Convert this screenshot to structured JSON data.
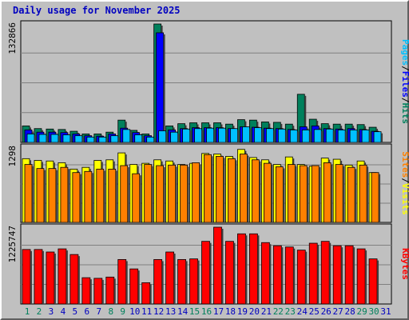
{
  "title": "Daily usage for November 2025",
  "colors": {
    "hits": "#00805c",
    "files": "#0000ff",
    "pages": "#00c0ff",
    "visits": "#ffff00",
    "sites": "#ff8000",
    "kbytes": "#ff0000",
    "weekend_label": "#00805c",
    "weekday_label": "#0000c0"
  },
  "chart_data": [
    {
      "type": "bar",
      "name": "hits-files-pages",
      "ymax_label": "132866",
      "ylim": [
        0,
        132866
      ],
      "categories": [
        "1",
        "2",
        "3",
        "4",
        "5",
        "6",
        "7",
        "8",
        "9",
        "10",
        "11",
        "12",
        "13",
        "14",
        "15",
        "16",
        "17",
        "18",
        "19",
        "20",
        "21",
        "22",
        "23",
        "24",
        "25",
        "26",
        "27",
        "28",
        "29",
        "30",
        "31"
      ],
      "series": [
        {
          "name": "Hits",
          "values": [
            18500,
            15500,
            15000,
            14500,
            12500,
            9500,
            9500,
            11500,
            25000,
            13500,
            9500,
            132866,
            18500,
            21000,
            22000,
            22000,
            22000,
            20500,
            25500,
            25000,
            23000,
            22500,
            20500,
            54000,
            26000,
            21000,
            20500,
            20500,
            20000,
            17000,
            0
          ]
        },
        {
          "name": "Files",
          "values": [
            14000,
            11500,
            11500,
            11000,
            9500,
            7500,
            7000,
            9500,
            16000,
            11000,
            7500,
            123000,
            14000,
            15500,
            16500,
            16500,
            16500,
            15500,
            17500,
            17000,
            16000,
            15500,
            14500,
            17500,
            18500,
            15500,
            15000,
            15500,
            14500,
            12500,
            0
          ]
        },
        {
          "name": "Pages",
          "values": [
            9500,
            9000,
            9000,
            8500,
            7500,
            6000,
            6000,
            7500,
            14500,
            8500,
            6000,
            13000,
            11500,
            15000,
            15500,
            16000,
            16000,
            15500,
            17500,
            16500,
            15500,
            15000,
            14000,
            14000,
            14500,
            15000,
            14000,
            14000,
            14000,
            12000,
            0
          ]
        }
      ]
    },
    {
      "type": "bar",
      "name": "visits-sites",
      "ymax_label": "1298",
      "ylim": [
        0,
        1298
      ],
      "categories": [
        "1",
        "2",
        "3",
        "4",
        "5",
        "6",
        "7",
        "8",
        "9",
        "10",
        "11",
        "12",
        "13",
        "14",
        "15",
        "16",
        "17",
        "18",
        "19",
        "20",
        "21",
        "22",
        "23",
        "24",
        "25",
        "26",
        "27",
        "28",
        "29",
        "30",
        "31"
      ],
      "series": [
        {
          "name": "Visits",
          "values": [
            1100,
            1070,
            1060,
            1030,
            920,
            950,
            1070,
            1080,
            1200,
            1000,
            1020,
            1080,
            1060,
            1000,
            1020,
            1190,
            1180,
            1140,
            1260,
            1120,
            1080,
            1000,
            1130,
            1000,
            970,
            1110,
            1090,
            990,
            1060,
            860,
            0
          ]
        },
        {
          "name": "Sites",
          "values": [
            1000,
            930,
            930,
            950,
            860,
            880,
            920,
            920,
            980,
            840,
            1000,
            980,
            990,
            990,
            1030,
            1170,
            1140,
            1100,
            1180,
            1080,
            1020,
            960,
            1000,
            980,
            980,
            1030,
            1000,
            950,
            990,
            860,
            0
          ]
        }
      ]
    },
    {
      "type": "bar",
      "name": "kbytes",
      "ymax_label": "1225747",
      "ylim": [
        0,
        1225747
      ],
      "categories": [
        "1",
        "2",
        "3",
        "4",
        "5",
        "6",
        "7",
        "8",
        "9",
        "10",
        "11",
        "12",
        "13",
        "14",
        "15",
        "16",
        "17",
        "18",
        "19",
        "20",
        "21",
        "22",
        "23",
        "24",
        "25",
        "26",
        "27",
        "28",
        "29",
        "30",
        "31"
      ],
      "series": [
        {
          "name": "KBytes",
          "values": [
            870000,
            870000,
            830000,
            880000,
            790000,
            420000,
            410000,
            430000,
            710000,
            560000,
            340000,
            710000,
            830000,
            710000,
            720000,
            1000000,
            1225747,
            1000000,
            1120000,
            1120000,
            980000,
            930000,
            910000,
            860000,
            970000,
            1000000,
            930000,
            930000,
            880000,
            720000,
            0
          ]
        }
      ]
    }
  ],
  "right_labels": {
    "top": [
      {
        "text": "Pages",
        "color": "#00c0ff"
      },
      {
        "text": "/",
        "color": "#000000"
      },
      {
        "text": "Files",
        "color": "#0000ff"
      },
      {
        "text": "/",
        "color": "#000000"
      },
      {
        "text": "Hits",
        "color": "#00805c"
      }
    ],
    "middle": [
      {
        "text": "Sites",
        "color": "#ff8000"
      },
      {
        "text": "/",
        "color": "#000000"
      },
      {
        "text": "Visits",
        "color": "#ffff00"
      }
    ],
    "bottom": [
      {
        "text": "KBytes",
        "color": "#ff0000"
      }
    ]
  },
  "weekend_days": [
    "1",
    "2",
    "8",
    "9",
    "15",
    "16",
    "22",
    "23",
    "29",
    "30"
  ]
}
